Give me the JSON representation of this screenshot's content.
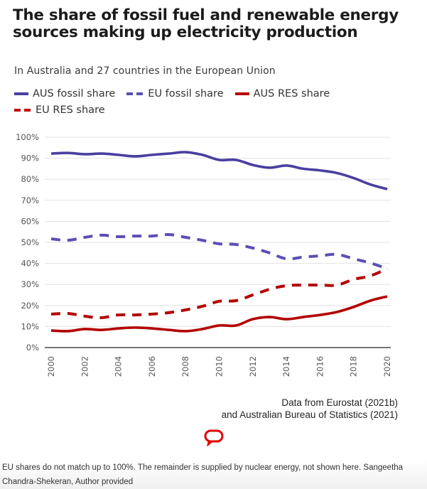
{
  "caption": "EU shares do not match up to 100%. The remainder is supplied by nuclear energy, not shown here. Sangeetha Chandra-Shekeran, Author provided",
  "source": {
    "line1": "Data from Eurostat (2021b)",
    "line2": "and Australian Bureau of Statistics (2021)"
  },
  "logo": {
    "name": "speech-bubble-logo",
    "color": "#e00000"
  },
  "chart_data": {
    "type": "line",
    "title": "The share of fossil fuel and renewable energy sources making up electricity production",
    "subtitle": "In Australia and 27 countries in the European Union",
    "xlabel": "",
    "ylabel": "",
    "x": [
      2000,
      2001,
      2002,
      2003,
      2004,
      2005,
      2006,
      2007,
      2008,
      2009,
      2010,
      2011,
      2012,
      2013,
      2014,
      2015,
      2016,
      2017,
      2018,
      2019,
      2020
    ],
    "x_ticks": [
      "2000",
      "2002",
      "2004",
      "2006",
      "2008",
      "2010",
      "2012",
      "2014",
      "2016",
      "2018",
      "2020"
    ],
    "y_ticks": [
      "0%",
      "10%",
      "20%",
      "30%",
      "40%",
      "50%",
      "60%",
      "70%",
      "80%",
      "90%",
      "100%"
    ],
    "ylim": [
      0,
      100
    ],
    "xlim": [
      2000,
      2020
    ],
    "grid": true,
    "legend_position": "top-left",
    "series": [
      {
        "name": "AUS fossil share",
        "color": "#4a3fa0",
        "style": "solid",
        "values": [
          92.2,
          92.5,
          91.9,
          92.2,
          91.6,
          90.9,
          91.6,
          92.2,
          92.9,
          91.6,
          89.2,
          89.2,
          86.8,
          85.5,
          86.5,
          85.0,
          84.2,
          83.0,
          80.6,
          77.5,
          75.3
        ]
      },
      {
        "name": "EU fossil share",
        "color": "#4a3fa0",
        "style": "dashed",
        "values": [
          51.7,
          51.0,
          52.4,
          53.4,
          52.7,
          53.0,
          53.0,
          53.7,
          52.4,
          51.0,
          49.3,
          49.0,
          47.3,
          45.0,
          42.2,
          43.0,
          43.6,
          44.3,
          42.2,
          40.2,
          37.5
        ]
      },
      {
        "name": "AUS RES share",
        "color": "#b30000",
        "style": "solid",
        "values": [
          8.1,
          7.8,
          8.8,
          8.4,
          9.1,
          9.5,
          9.1,
          8.4,
          7.8,
          8.8,
          10.5,
          10.5,
          13.5,
          14.5,
          13.5,
          14.5,
          15.5,
          16.9,
          19.3,
          22.3,
          24.3
        ]
      },
      {
        "name": "EU RES share",
        "color": "#b30000",
        "style": "dashed",
        "values": [
          15.9,
          16.2,
          14.9,
          14.2,
          15.5,
          15.5,
          15.9,
          16.6,
          17.9,
          19.6,
          22.0,
          22.3,
          25.0,
          27.7,
          29.4,
          29.7,
          29.7,
          29.7,
          32.4,
          34.1,
          37.5
        ]
      }
    ]
  }
}
